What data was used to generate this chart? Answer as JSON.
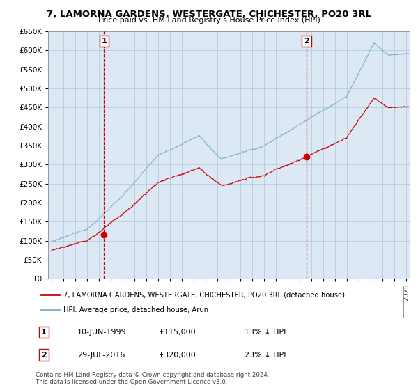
{
  "title": "7, LAMORNA GARDENS, WESTERGATE, CHICHESTER, PO20 3RL",
  "subtitle": "Price paid vs. HM Land Registry's House Price Index (HPI)",
  "legend_line1": "7, LAMORNA GARDENS, WESTERGATE, CHICHESTER, PO20 3RL (detached house)",
  "legend_line2": "HPI: Average price, detached house, Arun",
  "annotation1": {
    "num": "1",
    "date": "10-JUN-1999",
    "price": "£115,000",
    "pct": "13% ↓ HPI"
  },
  "annotation2": {
    "num": "2",
    "date": "29-JUL-2016",
    "price": "£320,000",
    "pct": "23% ↓ HPI"
  },
  "sale1_x": 1999.44,
  "sale1_y": 115000,
  "sale2_x": 2016.58,
  "sale2_y": 320000,
  "hpi_color": "#7bafd4",
  "price_color": "#cc0000",
  "marker_color": "#cc0000",
  "vline_color": "#cc0000",
  "plot_bg_color": "#dce9f5",
  "ylim": [
    0,
    650000
  ],
  "xlim": [
    1994.7,
    2025.3
  ],
  "ytick_step": 50000,
  "copyright": "Contains HM Land Registry data © Crown copyright and database right 2024.\nThis data is licensed under the Open Government Licence v3.0.",
  "background_color": "#ffffff",
  "grid_color": "#b0c4d8"
}
